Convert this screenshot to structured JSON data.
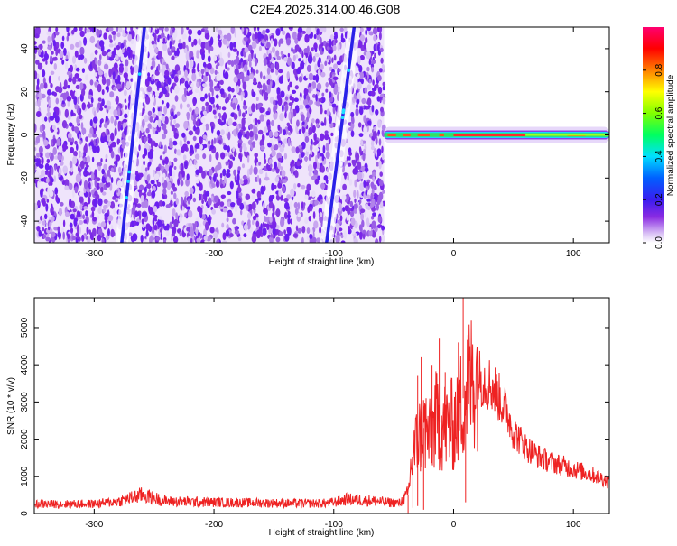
{
  "figure_title": "C2E4.2025.314.00.46.G08",
  "chart_data": [
    {
      "type": "heatmap",
      "xlabel": "Height of straight line (km)",
      "ylabel": "Frequency (Hz)",
      "xlim": [
        -350,
        130
      ],
      "ylim": [
        -50,
        50
      ],
      "xticks": [
        -300,
        -200,
        -100,
        0,
        100
      ],
      "yticks": [
        -40,
        -20,
        0,
        20,
        40
      ],
      "grid": false,
      "noise_region_x": [
        -350,
        -58
      ],
      "signal_line_x": [
        -58,
        130
      ],
      "signal_frequency": 0,
      "streaks": [
        {
          "x": [
            -277,
            -258
          ],
          "y": [
            -50,
            50
          ]
        },
        {
          "x": [
            -106,
            -83
          ],
          "y": [
            -50,
            50
          ]
        }
      ],
      "colorbar": {
        "label": "Normalized spectral amplitude",
        "range": [
          0,
          1
        ],
        "ticks": [
          "0.0",
          "0.2",
          "0.4",
          "0.6",
          "0.8"
        ],
        "colors": [
          "#ffffff",
          "#dcc6f6",
          "#8a2be2",
          "#3a1cf0",
          "#0060ff",
          "#00e0ff",
          "#00ff60",
          "#80ff00",
          "#ffff00",
          "#ff8000",
          "#ff0000",
          "#ff0070"
        ]
      }
    },
    {
      "type": "line",
      "xlabel": "Height of straight line (km)",
      "ylabel": "SNR (10 * v/v)",
      "xlim": [
        -350,
        130
      ],
      "ylim": [
        0,
        5800
      ],
      "xticks": [
        -300,
        -200,
        -100,
        0,
        100
      ],
      "yticks": [
        0,
        1000,
        2000,
        3000,
        4000,
        5000
      ],
      "grid": false,
      "color": "#ee2222",
      "envelope_x": [
        -350,
        -300,
        -280,
        -260,
        -240,
        -200,
        -150,
        -110,
        -100,
        -90,
        -70,
        -55,
        -45,
        -38,
        -35,
        -30,
        -25,
        -20,
        -15,
        -10,
        -5,
        0,
        5,
        10,
        15,
        20,
        25,
        30,
        35,
        40,
        45,
        50,
        60,
        70,
        80,
        90,
        100,
        110,
        120,
        130
      ],
      "envelope_y": [
        250,
        260,
        320,
        500,
        330,
        300,
        280,
        270,
        300,
        380,
        350,
        300,
        280,
        500,
        1400,
        2000,
        2300,
        2000,
        2500,
        2400,
        2300,
        2400,
        2800,
        3300,
        3600,
        3700,
        3600,
        3500,
        3300,
        3000,
        2700,
        2200,
        1800,
        1550,
        1400,
        1300,
        1200,
        1100,
        1000,
        850
      ],
      "spikes": [
        {
          "x": -33,
          "y": 2200
        },
        {
          "x": -30,
          "y": 3700
        },
        {
          "x": -27,
          "y": 4200
        },
        {
          "x": -23,
          "y": 3100
        },
        {
          "x": -18,
          "y": 4000
        },
        {
          "x": -12,
          "y": 4700
        },
        {
          "x": -7,
          "y": 3800
        },
        {
          "x": -2,
          "y": 3600
        },
        {
          "x": 4,
          "y": 4600
        },
        {
          "x": 8,
          "y": 5800
        },
        {
          "x": 12,
          "y": 4800
        },
        {
          "x": 16,
          "y": 4200
        }
      ],
      "dips": [
        {
          "x": -38,
          "y": 20
        },
        {
          "x": -34,
          "y": 150
        },
        {
          "x": -30,
          "y": 200
        },
        {
          "x": -25,
          "y": 100
        },
        {
          "x": 10,
          "y": 300
        }
      ]
    }
  ]
}
